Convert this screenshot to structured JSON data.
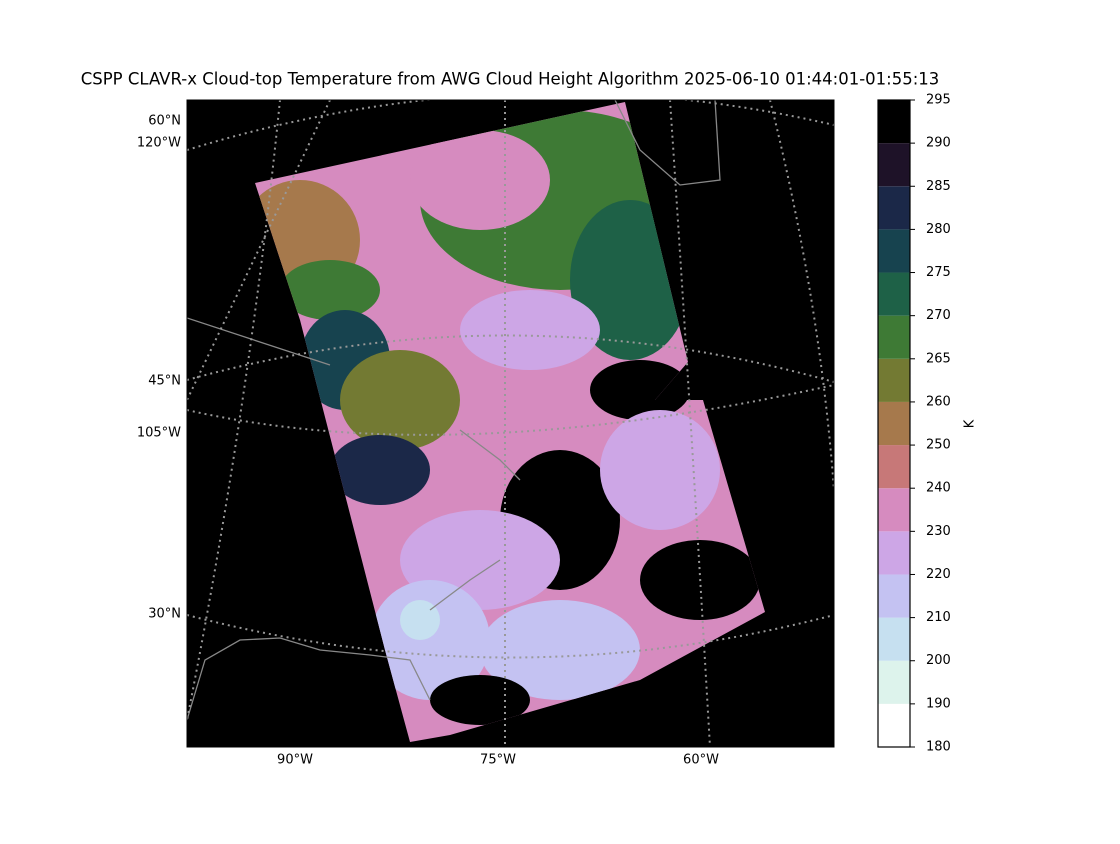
{
  "title": "CSPP CLAVR-x Cloud-top Temperature from AWG Cloud Height Algorithm 2025-06-10 01:44:01-01:55:13",
  "map": {
    "lat_labels": [
      "60°N",
      "45°N",
      "30°N"
    ],
    "lon_labels_left": [
      "120°W",
      "105°W"
    ],
    "lon_labels_bottom": [
      "90°W",
      "75°W",
      "60°W"
    ]
  },
  "colorbar": {
    "label": "K",
    "boundaries": [
      180,
      190,
      200,
      210,
      220,
      230,
      240,
      250,
      260,
      265,
      270,
      275,
      280,
      285,
      290,
      295
    ],
    "colors": [
      "#ffffff",
      "#ddf3ec",
      "#c6e0f0",
      "#c4c2f2",
      "#cda6e6",
      "#d68bbf",
      "#c77878",
      "#a6794c",
      "#737a33",
      "#3e7a35",
      "#1e6147",
      "#17434f",
      "#1b2848",
      "#1e1228",
      "#000000"
    ]
  }
}
